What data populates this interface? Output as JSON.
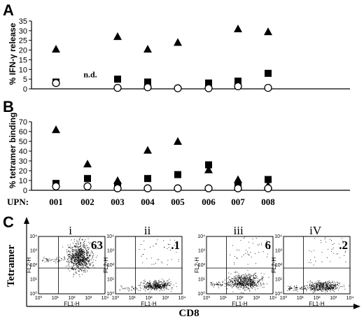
{
  "panels": {
    "a": {
      "letter": "A"
    },
    "b": {
      "letter": "B"
    },
    "c": {
      "letter": "C"
    }
  },
  "upn_label": "UPN:",
  "chart_data": [
    {
      "type": "scatter",
      "panel": "A",
      "ylabel": "% IFN-γ release",
      "ylim": [
        0,
        35
      ],
      "yticks": [
        0,
        5,
        10,
        15,
        20,
        25,
        30,
        35
      ],
      "categories": [
        "001",
        "002",
        "003",
        "004",
        "005",
        "006",
        "007",
        "008"
      ],
      "series": [
        {
          "marker": "triangle",
          "values": [
            20.5,
            null,
            27,
            20.5,
            24,
            null,
            31,
            29.5
          ]
        },
        {
          "marker": "square",
          "values": [
            3.5,
            null,
            5,
            3.5,
            null,
            3,
            4,
            8
          ]
        },
        {
          "marker": "circle-open",
          "values": [
            3,
            null,
            0.5,
            0.8,
            0.3,
            0.3,
            1.3,
            0.5
          ]
        }
      ],
      "annotations": [
        {
          "category": "002",
          "text": "n.d."
        }
      ]
    },
    {
      "type": "scatter",
      "panel": "B",
      "ylabel": "% tetramer binding",
      "ylim": [
        0,
        70
      ],
      "yticks": [
        0,
        10,
        20,
        30,
        40,
        50,
        60,
        70
      ],
      "categories": [
        "001",
        "002",
        "003",
        "004",
        "005",
        "006",
        "007",
        "008"
      ],
      "series": [
        {
          "marker": "triangle",
          "values": [
            62,
            27,
            10,
            41,
            50,
            21,
            11,
            5
          ]
        },
        {
          "marker": "square",
          "values": [
            7,
            12,
            5,
            12,
            16,
            26,
            4,
            11
          ]
        },
        {
          "marker": "circle-open",
          "values": [
            4,
            4,
            2,
            2,
            2,
            2,
            2,
            2
          ]
        }
      ]
    },
    {
      "type": "scatter",
      "panel": "C",
      "xlabel": "CD8",
      "ylabel": "Tetramer",
      "subplots": [
        {
          "label": "i",
          "value": "63",
          "axis_x": "FL1-H",
          "axis_y": "FL2-H",
          "ticks": [
            "10⁰",
            "10¹",
            "10²",
            "10³",
            "10⁴"
          ]
        },
        {
          "label": "ii",
          "value": ".1",
          "axis_x": "FL1-H",
          "axis_y": "FL2-H",
          "ticks": [
            "10⁰",
            "10¹",
            "10²",
            "10³",
            "10⁴"
          ]
        },
        {
          "label": "iii",
          "value": "6",
          "axis_x": "FL1-H",
          "axis_y": "FL2-H",
          "ticks": [
            "10⁰",
            "10¹",
            "10²",
            "10³",
            "10⁴"
          ]
        },
        {
          "label": "iV",
          "value": ".2",
          "axis_x": "FL1-H",
          "axis_y": "FL2-H",
          "ticks": [
            "10⁰",
            "10¹",
            "10²",
            "10³",
            "10⁴"
          ]
        }
      ]
    }
  ]
}
